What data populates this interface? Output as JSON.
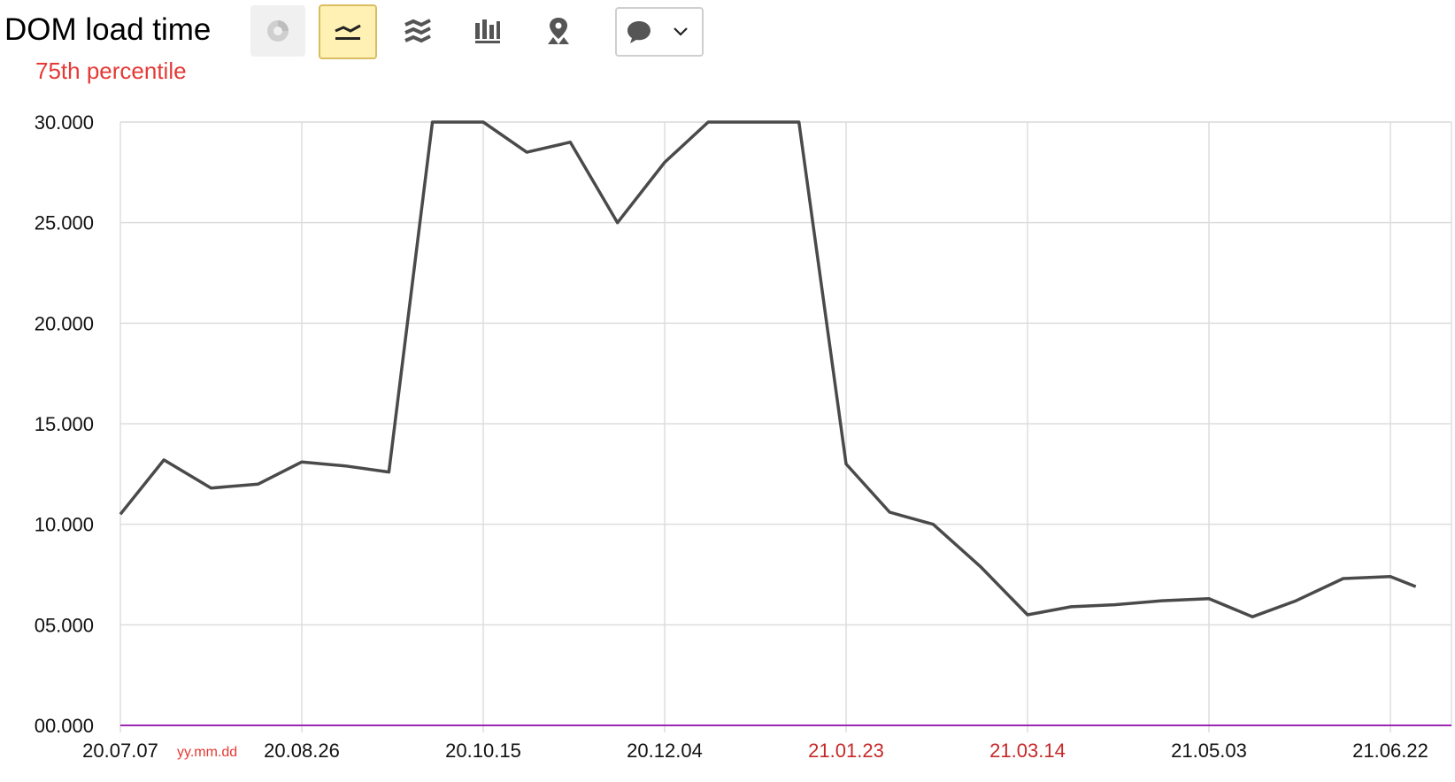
{
  "header": {
    "title": "DOM load time",
    "subtitle": "75th percentile"
  },
  "toolbar": {
    "buttons": [
      {
        "icon": "pie-chart-icon",
        "active": false,
        "enabled": false
      },
      {
        "icon": "line-chart-icon",
        "active": true
      },
      {
        "icon": "area-chart-icon",
        "active": false
      },
      {
        "icon": "bar-chart-icon",
        "active": false
      },
      {
        "icon": "map-pin-icon",
        "active": false
      },
      {
        "icon": "comment-icon",
        "active": false,
        "dropdown": "chevron-down-icon"
      }
    ]
  },
  "colors": {
    "line": "#4a4a4a",
    "grid": "#dddddd",
    "baseline": "#9c27b0",
    "weekend_label": "#c62828",
    "subtitle": "#e53935",
    "active_button": "#fff1b3"
  },
  "chart_data": {
    "type": "line",
    "title": "DOM load time",
    "subtitle": "75th percentile",
    "x_format_label": "yy.mm.dd",
    "x_tick_labels": [
      {
        "label": "20.07.07",
        "highlight": false
      },
      {
        "label": "20.08.26",
        "highlight": false
      },
      {
        "label": "20.10.15",
        "highlight": false
      },
      {
        "label": "20.12.04",
        "highlight": false
      },
      {
        "label": "21.01.23",
        "highlight": true
      },
      {
        "label": "21.03.14",
        "highlight": true
      },
      {
        "label": "21.05.03",
        "highlight": false
      },
      {
        "label": "21.06.22",
        "highlight": false
      }
    ],
    "y_tick_labels": [
      "00.000",
      "05.000",
      "10.000",
      "15.000",
      "20.000",
      "25.000",
      "30.000"
    ],
    "ylim": [
      0,
      30
    ],
    "grid": true,
    "x": [
      "2020-07-07",
      "2020-07-19",
      "2020-08-01",
      "2020-08-14",
      "2020-08-26",
      "2020-09-07",
      "2020-09-19",
      "2020-10-01",
      "2020-10-15",
      "2020-10-27",
      "2020-11-08",
      "2020-11-21",
      "2020-12-04",
      "2020-12-16",
      "2020-12-28",
      "2021-01-10",
      "2021-01-23",
      "2021-02-04",
      "2021-02-16",
      "2021-03-01",
      "2021-03-14",
      "2021-03-26",
      "2021-04-07",
      "2021-04-20",
      "2021-05-03",
      "2021-05-15",
      "2021-05-27",
      "2021-06-09",
      "2021-06-22",
      "2021-06-29"
    ],
    "series": [
      {
        "values": [
          10.5,
          13.2,
          11.8,
          12.0,
          13.1,
          12.9,
          12.6,
          30.0,
          30.0,
          28.5,
          29.0,
          25.0,
          28.0,
          30.0,
          30.0,
          30.0,
          13.0,
          10.6,
          10.0,
          7.9,
          5.5,
          5.9,
          6.0,
          6.2,
          6.3,
          5.4,
          6.2,
          7.3,
          7.4,
          6.9
        ]
      }
    ]
  }
}
